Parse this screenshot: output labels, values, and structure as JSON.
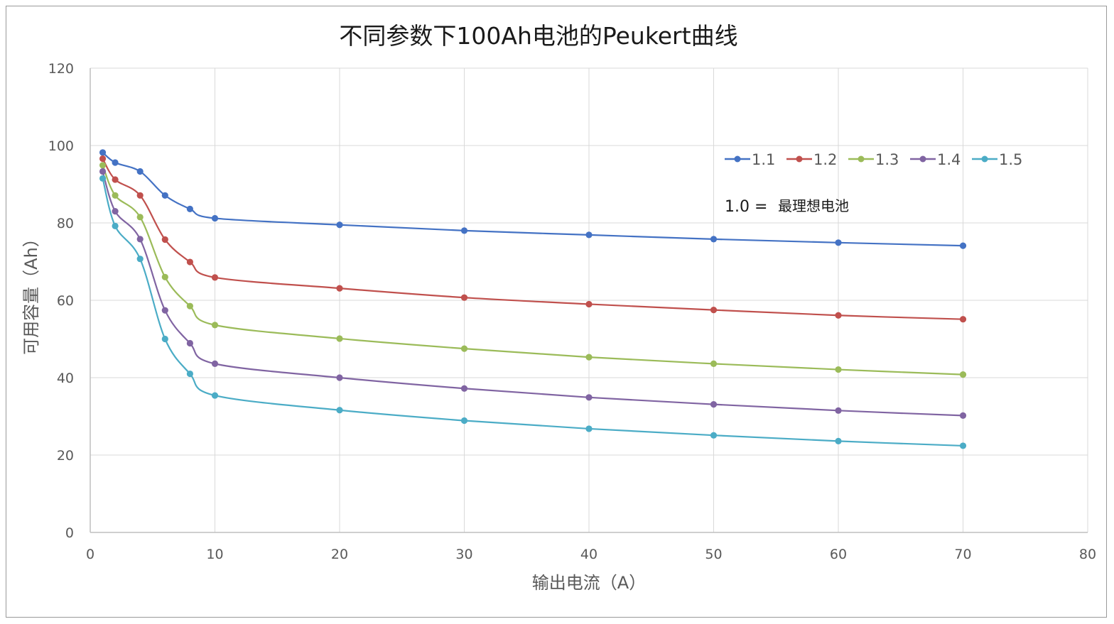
{
  "chart_data": {
    "type": "line",
    "title": "不同参数下100Ah电池的Peukert曲线",
    "xlabel": "输出电流（A）",
    "ylabel": "可用容量（Ah）",
    "xlim": [
      0,
      80
    ],
    "ylim": [
      0,
      120
    ],
    "xticks": [
      "0",
      "10",
      "20",
      "30",
      "40",
      "50",
      "60",
      "70",
      "80"
    ],
    "yticks": [
      "0",
      "20",
      "40",
      "60",
      "80",
      "100",
      "120"
    ],
    "grid": true,
    "legend_position": "top-right",
    "x": [
      1,
      2,
      4,
      6,
      8,
      10,
      20,
      30,
      40,
      50,
      60,
      70
    ],
    "series": [
      {
        "name": "1.1",
        "color": "#4472c4",
        "values": [
          98.2,
          95.6,
          93.3,
          87.1,
          83.6,
          81.2,
          79.5,
          78.0,
          76.9,
          75.8,
          74.9,
          74.1
        ]
      },
      {
        "name": "1.2",
        "color": "#c0504d",
        "values": [
          96.6,
          91.2,
          87.1,
          75.7,
          69.9,
          65.9,
          63.1,
          60.7,
          59.0,
          57.5,
          56.1,
          55.1
        ]
      },
      {
        "name": "1.3",
        "color": "#9bbb59",
        "values": [
          94.9,
          87.1,
          81.5,
          66.0,
          58.5,
          53.6,
          50.1,
          47.5,
          45.3,
          43.6,
          42.1,
          40.8
        ]
      },
      {
        "name": "1.4",
        "color": "#8064a2",
        "values": [
          93.3,
          83.0,
          75.8,
          57.4,
          48.9,
          43.6,
          40.0,
          37.2,
          34.9,
          33.1,
          31.5,
          30.2
        ]
      },
      {
        "name": "1.5",
        "color": "#4bacc6",
        "values": [
          91.5,
          79.2,
          70.7,
          50.0,
          41.0,
          35.4,
          31.6,
          28.9,
          26.8,
          25.1,
          23.6,
          22.4
        ]
      }
    ],
    "annotation": {
      "value": "1.0 =",
      "text": "最理想电池"
    }
  }
}
